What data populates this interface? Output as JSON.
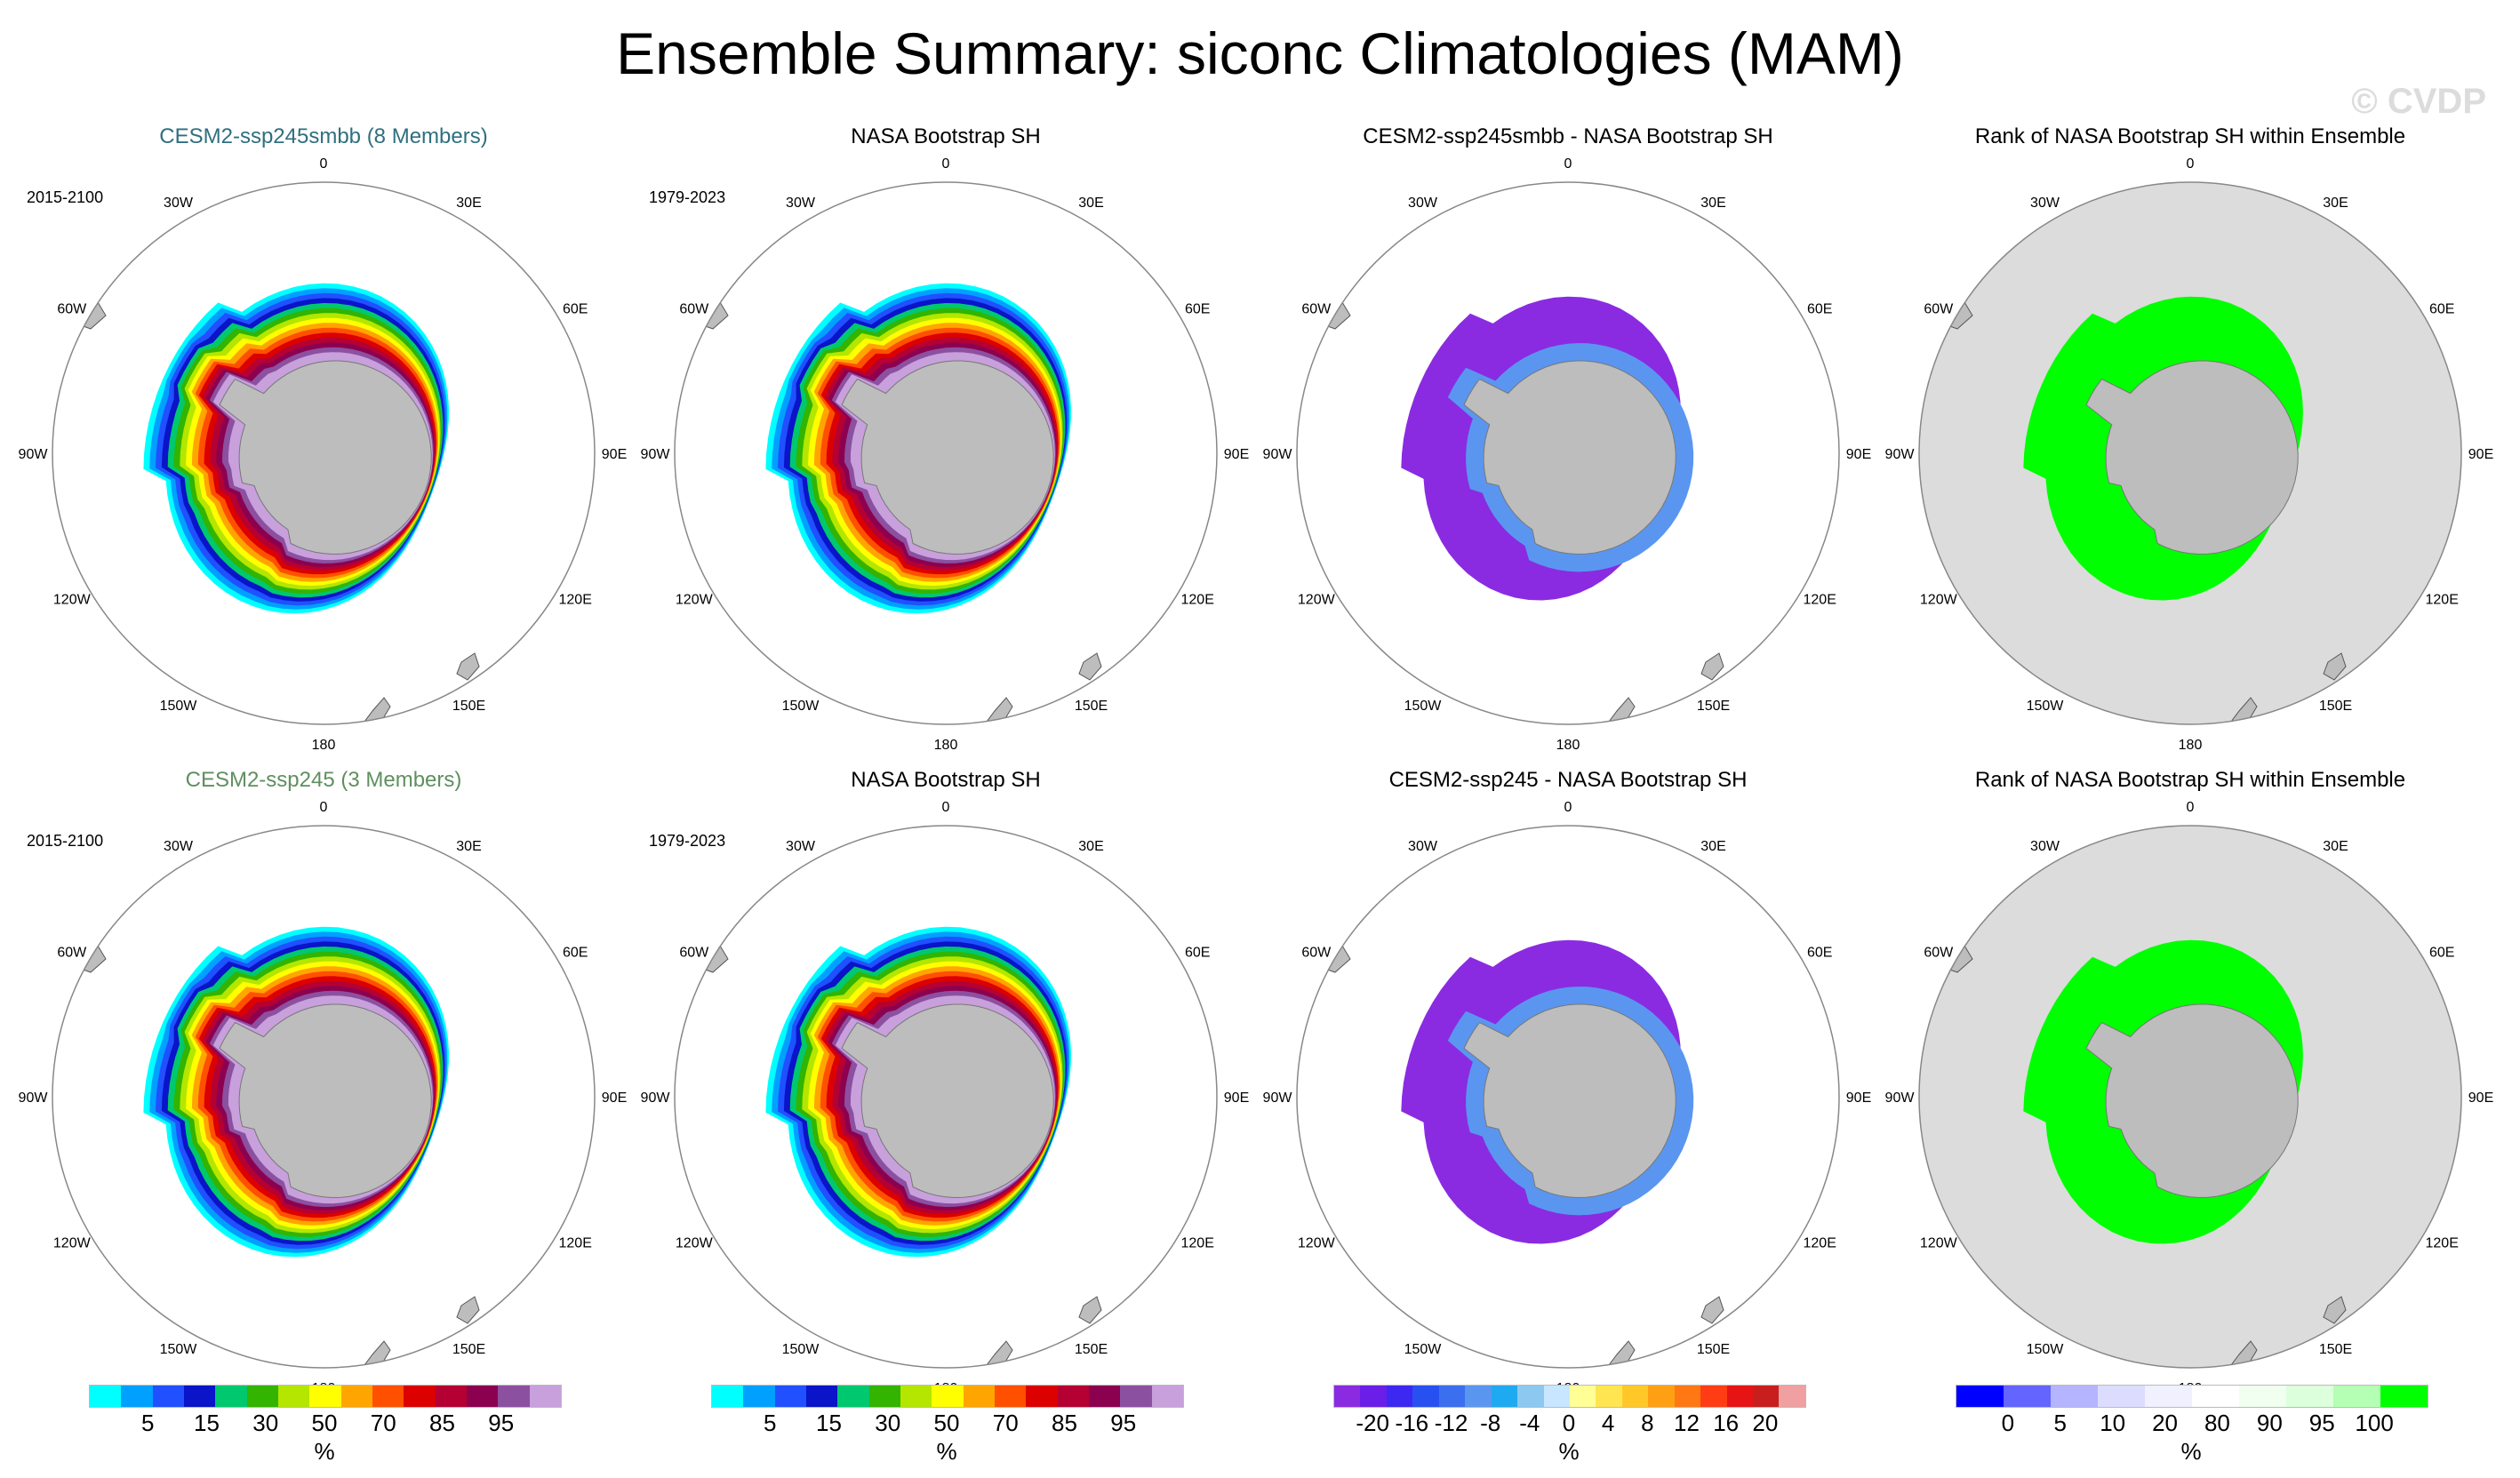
{
  "title": "Ensemble Summary: siconc Climatologies (MAM)",
  "watermark": "© CVDP",
  "chart_data": {
    "type": "polar-map-panels",
    "projection": "south-polar-stereographic",
    "season": "MAM",
    "variable": "siconc",
    "units": "%",
    "longitude_labels": [
      "0",
      "30E",
      "60E",
      "90E",
      "120E",
      "150E",
      "180",
      "150W",
      "120W",
      "90W",
      "60W",
      "30W"
    ],
    "rows": [
      {
        "panels": [
          {
            "title": "CESM2-ssp245smbb (8 Members)",
            "period": "2015-2100",
            "title_color": "#2f6f7f",
            "kind": "climatology",
            "base_sector": "antarctic-ice-edge"
          },
          {
            "title": "NASA Bootstrap SH",
            "period": "1979-2023",
            "title_color": "#000000",
            "kind": "climatology",
            "base_sector": "antarctic-ice-edge"
          },
          {
            "title": "CESM2-ssp245smbb - NASA Bootstrap SH",
            "period": "",
            "title_color": "#000000",
            "kind": "difference",
            "dominant_value": -20
          },
          {
            "title": "Rank of NASA Bootstrap SH within Ensemble",
            "period": "",
            "title_color": "#000000",
            "kind": "rank",
            "dominant_value": 100
          }
        ]
      },
      {
        "panels": [
          {
            "title": "CESM2-ssp245 (3 Members)",
            "period": "2015-2100",
            "title_color": "#5f8f5f",
            "kind": "climatology",
            "base_sector": "antarctic-ice-edge"
          },
          {
            "title": "NASA Bootstrap SH",
            "period": "1979-2023",
            "title_color": "#000000",
            "kind": "climatology",
            "base_sector": "antarctic-ice-edge"
          },
          {
            "title": "CESM2-ssp245 - NASA Bootstrap SH",
            "period": "",
            "title_color": "#000000",
            "kind": "difference",
            "dominant_value": -20
          },
          {
            "title": "Rank of NASA Bootstrap SH within Ensemble",
            "period": "",
            "title_color": "#000000",
            "kind": "rank",
            "dominant_value": 100
          }
        ]
      }
    ],
    "colorbars": [
      {
        "name": "climatology",
        "unit": "%",
        "ticks": [
          "5",
          "15",
          "30",
          "50",
          "70",
          "85",
          "95"
        ],
        "colors": [
          "#00ffff",
          "#00a0ff",
          "#2050ff",
          "#0a14c8",
          "#00c86e",
          "#32b400",
          "#b4e600",
          "#ffff00",
          "#ffa500",
          "#ff5000",
          "#dc0000",
          "#b40032",
          "#8c0050",
          "#8c50a0",
          "#c8a0dc"
        ]
      },
      {
        "name": "climatology",
        "unit": "%",
        "ticks": [
          "5",
          "15",
          "30",
          "50",
          "70",
          "85",
          "95"
        ],
        "colors": [
          "#00ffff",
          "#00a0ff",
          "#2050ff",
          "#0a14c8",
          "#00c86e",
          "#32b400",
          "#b4e600",
          "#ffff00",
          "#ffa500",
          "#ff5000",
          "#dc0000",
          "#b40032",
          "#8c0050",
          "#8c50a0",
          "#c8a0dc"
        ]
      },
      {
        "name": "difference",
        "unit": "%",
        "ticks": [
          "-20",
          "-16",
          "-12",
          "-8",
          "-4",
          "0",
          "4",
          "8",
          "12",
          "16",
          "20"
        ],
        "colors": [
          "#8a2be2",
          "#6a1ee8",
          "#3c28f0",
          "#2850f0",
          "#3c6ef0",
          "#5a96f0",
          "#1eaaf0",
          "#8cc8f0",
          "#c8e6ff",
          "#ffff96",
          "#ffe650",
          "#ffc828",
          "#ffa014",
          "#ff7814",
          "#ff3c14",
          "#e61414",
          "#c81e1e",
          "#f0a0a0"
        ]
      },
      {
        "name": "rank",
        "unit": "%",
        "ticks": [
          "0",
          "5",
          "10",
          "20",
          "80",
          "90",
          "95",
          "100"
        ],
        "colors": [
          "#0000ff",
          "#6464ff",
          "#b4b4ff",
          "#dcdcff",
          "#f0f0ff",
          "#ffffff",
          "#f0fff0",
          "#dcffdc",
          "#b4ffb4",
          "#00ff00"
        ]
      }
    ]
  }
}
